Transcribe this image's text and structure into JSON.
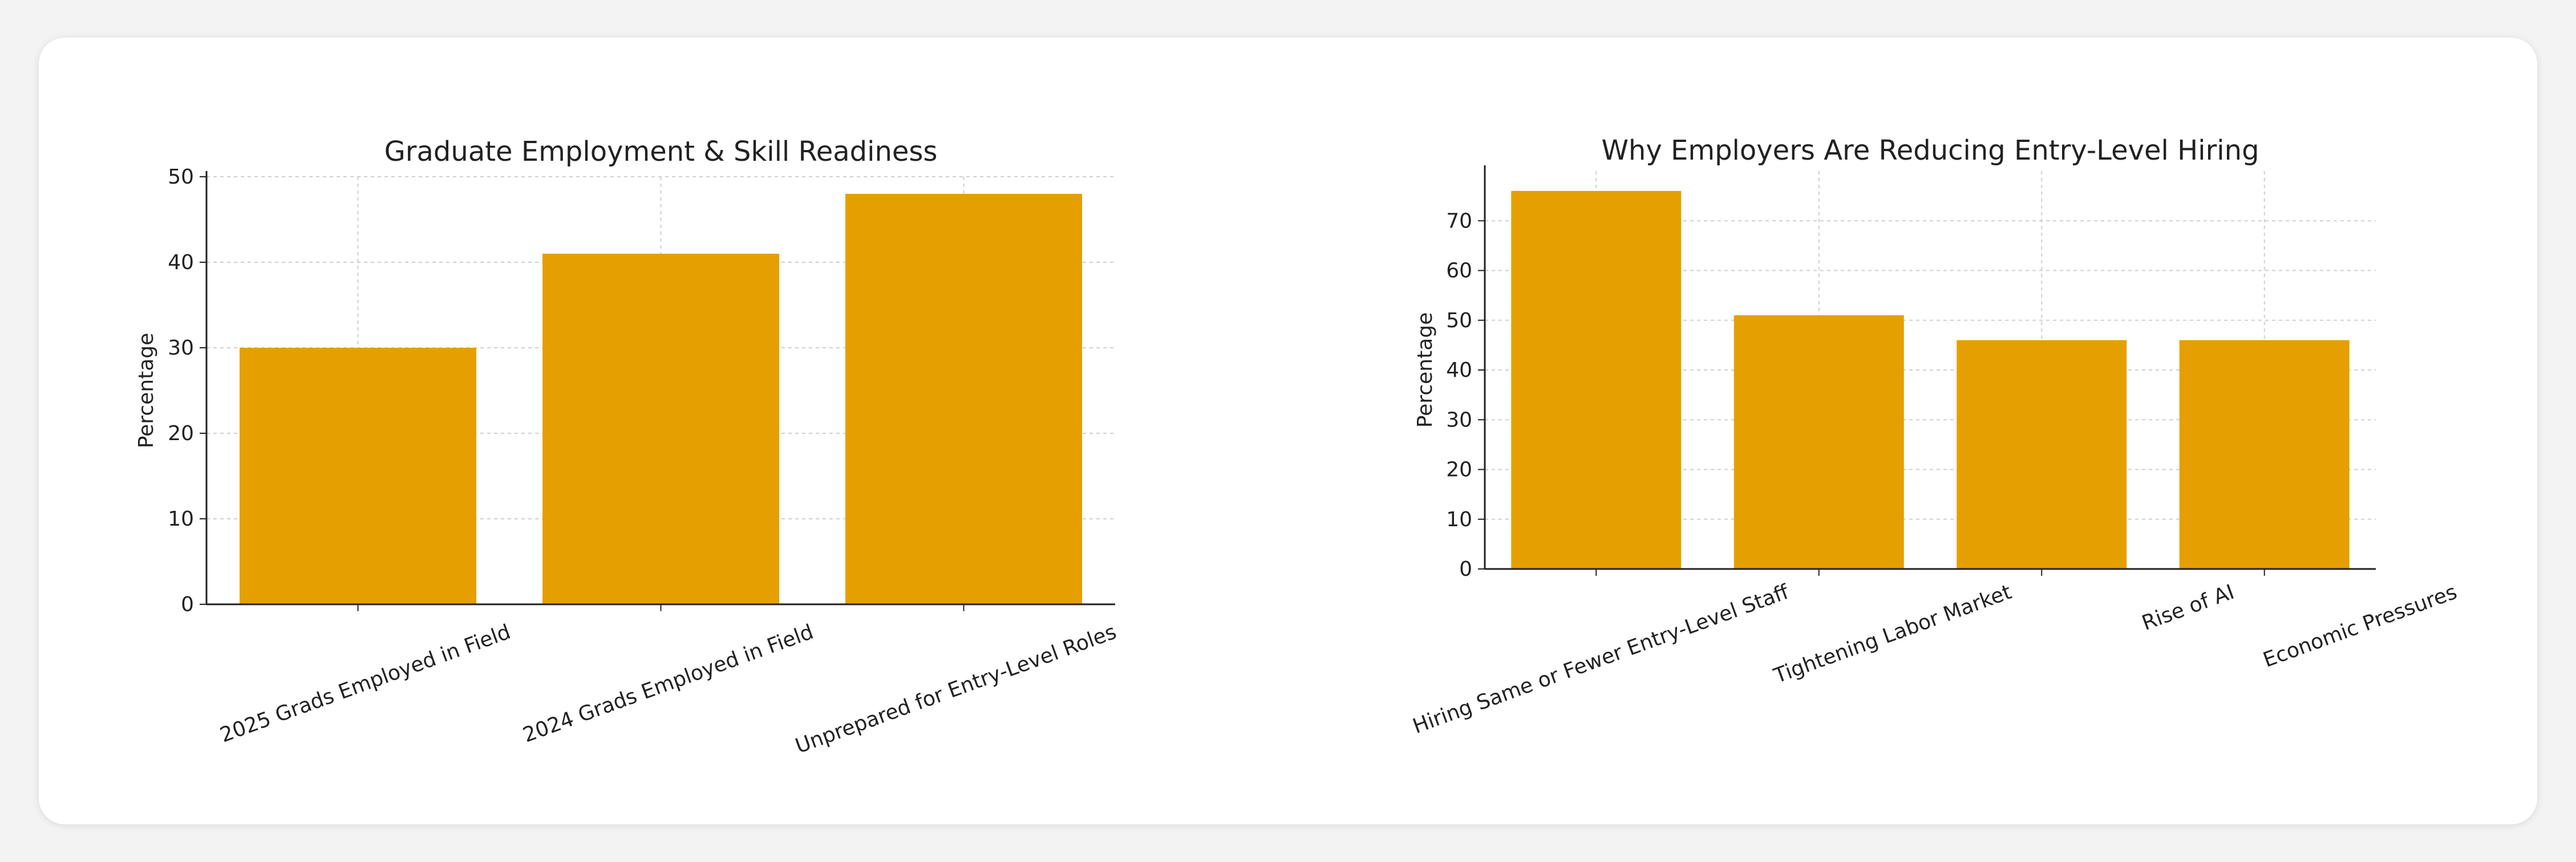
{
  "chart_data": [
    {
      "type": "bar",
      "title": "Graduate Employment & Skill Readiness",
      "ylabel": "Percentage",
      "xlabel": "",
      "categories": [
        "2025 Grads Employed in Field",
        "2024 Grads Employed in Field",
        "Unprepared for Entry-Level Roles"
      ],
      "values": [
        30,
        41,
        48
      ],
      "ylim": [
        0,
        50
      ],
      "yticks": [
        0,
        10,
        20,
        30,
        40,
        50
      ],
      "grid": true,
      "color": "#e69f00"
    },
    {
      "type": "bar",
      "title": "Why Employers Are Reducing Entry-Level Hiring",
      "ylabel": "Percentage",
      "xlabel": "",
      "categories": [
        "Hiring Same or Fewer Entry-Level Staff",
        "Tightening Labor Market",
        "Rise of AI",
        "Economic Pressures"
      ],
      "values": [
        76,
        51,
        46,
        46
      ],
      "ylim": [
        0,
        80
      ],
      "yticks": [
        0,
        10,
        20,
        30,
        40,
        50,
        60,
        70
      ],
      "grid": true,
      "color": "#e69f00"
    }
  ]
}
